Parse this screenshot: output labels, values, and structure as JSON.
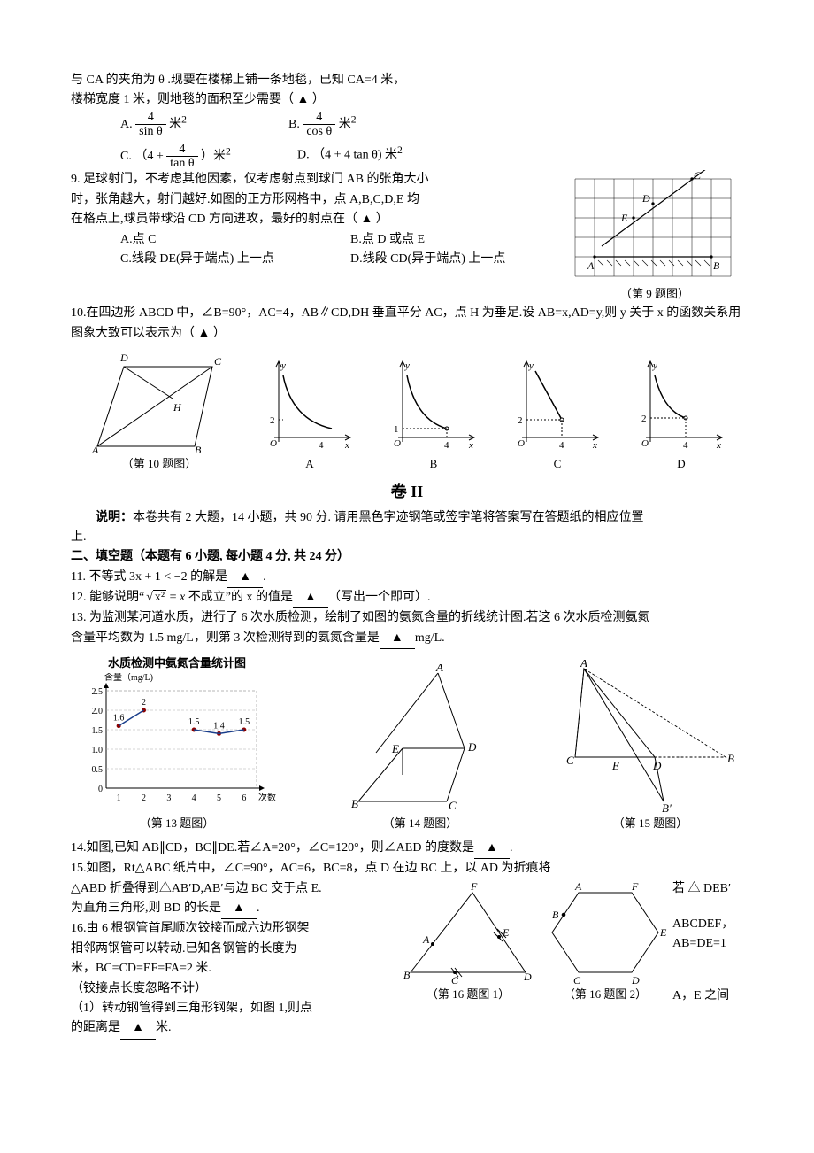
{
  "q8": {
    "pretext": "与 CA 的夹角为 θ .现要在楼梯上铺一条地毯，已知 CA=4 米，",
    "pretext2": "楼梯宽度 1 米，则地毯的面积至少需要（  ▲  ）",
    "opts": {
      "A_prefix": "A. ",
      "A_num": "4",
      "A_den": "sin θ",
      "A_suffix": " 米",
      "B_prefix": "B. ",
      "B_num": "4",
      "B_den": "cos θ",
      "B_suffix": " 米",
      "C_prefix": "C. （4 + ",
      "C_num": "4",
      "C_den": "tan θ",
      "C_suffix": "）米",
      "D_prefix": "D. （4 + 4 tan θ) 米"
    },
    "sq": "2"
  },
  "q9": {
    "l1": "9. 足球射门，不考虑其他因素，仅考虑射点到球门 AB 的张角大小",
    "l2": "时，张角越大，射门越好.如图的正方形网格中，点 A,B,C,D,E 均",
    "l3": "在格点上,球员带球沿 CD 方向进攻，最好的射点在（  ▲  ）",
    "oa": "A.点 C",
    "ob": "B.点 D 或点 E",
    "oc": "C.线段 DE(异于端点) 上一点",
    "od": "D.线段 CD(异于端点) 上一点",
    "caption": "（第 9 题图）",
    "labels": {
      "A": "A",
      "B": "B",
      "C": "C",
      "D": "D",
      "E": "E"
    }
  },
  "q10": {
    "text": "10.在四边形 ABCD 中，∠B=90°，AC=4，AB∥CD,DH 垂直平分 AC，点 H 为垂足.设 AB=x,AD=y,则 y 关于 x 的函数关系用图象大致可以表示为（  ▲  ）",
    "caption": "（第 10 题图）",
    "labels": {
      "A": "A",
      "B": "B",
      "C": "C",
      "D": "D",
      "H": "H",
      "O": "O",
      "x": "x",
      "y": "y",
      "n2": "2",
      "n1": "1",
      "n4": "4"
    },
    "optA": "A",
    "optB": "B",
    "optC": "C",
    "optD": "D"
  },
  "juan2": {
    "title": "卷  II",
    "desc_label": "说明：",
    "desc": "本卷共有 2 大题，14 小题，共 90 分. 请用黑色字迹钢笔或签字笔将答案写在答题纸的相应位置",
    "desc2": "上.",
    "section": "二、填空题（本题有 6 小题, 每小题 4 分, 共 24 分）"
  },
  "q11": "11. 不等式 3x + 1 < −2 的解是",
  "q11b": ".",
  "q12a": "12. 能够说明“",
  "q12mid": " 不成立”的 x 的值是",
  "q12b": "（写出一个即可）.",
  "sqrt_expr": "√x² = x",
  "q13a": "13. 为监测某河道水质，进行了 6 次水质检测，绘制了如图的氨氮含量的折线统计图.若这 6 次水质检测氨氮",
  "q13b": "含量平均数为 1.5 mg/L，则第 3 次检测得到的氨氮含量是",
  "q13unit": "mg/L.",
  "chart": {
    "title": "水质检测中氨氮含量统计图",
    "ylabel": "含量（mg/L)",
    "xlabel": "次数",
    "yticks": [
      "0",
      "0.5",
      "1.0",
      "1.5",
      "2.0",
      "2.5"
    ],
    "xticks": [
      "1",
      "2",
      "3",
      "4",
      "5",
      "6"
    ],
    "points_y": [
      1.6,
      2,
      null,
      1.5,
      1.4,
      1.5
    ],
    "labels": [
      "1.6",
      "2",
      "",
      "1.5",
      "1.4",
      "1.5"
    ],
    "caption": "（第 13 题图）",
    "ymax": 2.5
  },
  "fig14": {
    "caption": "（第 14 题图）",
    "labels": {
      "A": "A",
      "B": "B",
      "C": "C",
      "D": "D",
      "E": "E"
    }
  },
  "fig15": {
    "caption": "（第 15 题图）",
    "labels": {
      "A": "A",
      "B": "B",
      "C": "C",
      "D": "D",
      "E": "E",
      "Bp": "B′"
    }
  },
  "q14": "14.如图,已知 AB∥CD，BC∥DE.若∠A=20°，∠C=120°，则∠AED 的度数是",
  "q14b": ".",
  "q15a": "15.如图，Rt△ABC 纸片中，∠C=90°，AC=6，BC=8，点 D 在边 BC 上，以 AD 为折痕将",
  "q15b": "△ABD 折叠得到△AB′D,AB′与边 BC 交于点 E.",
  "q15c": "为直角三角形,则 BD 的长是",
  "q15d": ".",
  "q15side": "若 △ DEB′",
  "q16a": "16.由 6 根钢管首尾顺次铰接而成六边形钢架",
  "q16side": "ABCDEF，",
  "q16b": "相邻两钢管可以转动.已知各钢管的长度为",
  "q16bside": "AB=DE=1",
  "q16c": "米，BC=CD=EF=FA=2 米.",
  "q16d": "（铰接点长度忽略不计）",
  "q16e": "（1）转动钢管得到三角形钢架，如图 1,则点",
  "q16eside": "A，E 之间",
  "q16f": "的距离是",
  "q16fb": "米.",
  "fig16_1": {
    "caption": "（第 16 题图 1）",
    "labels": {
      "A": "A",
      "B": "B",
      "C": "C",
      "D": "D",
      "E": "E",
      "F": "F"
    }
  },
  "fig16_2": {
    "caption": "（第 16 题图 2）",
    "labels": {
      "A": "A",
      "B": "B",
      "C": "C",
      "D": "D",
      "E": "E",
      "F": "F"
    }
  },
  "tri": "▲"
}
